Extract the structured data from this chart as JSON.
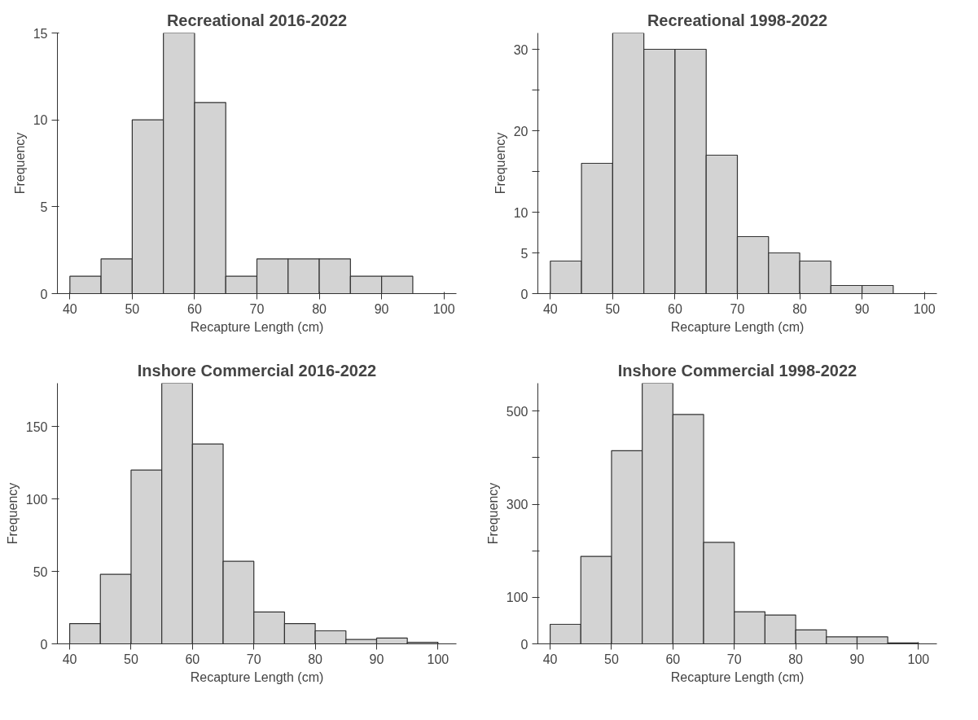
{
  "chart_data": [
    {
      "type": "histogram",
      "title": "Recreational 2016-2022",
      "xlabel": "Recapture Length (cm)",
      "ylabel": "Frequency",
      "color": "#d3d3d3",
      "grid": false,
      "bins": [
        40,
        45,
        50,
        55,
        60,
        65,
        70,
        75,
        80,
        85,
        90,
        95
      ],
      "values": [
        1,
        2,
        10,
        15,
        11,
        1,
        2,
        2,
        2,
        1,
        1
      ],
      "xlim": [
        38,
        102
      ],
      "xticks": [
        40,
        50,
        60,
        70,
        80,
        90,
        100
      ],
      "ylim": [
        0,
        15
      ],
      "yticks": [
        0,
        5,
        10,
        15
      ]
    },
    {
      "type": "histogram",
      "title": "Recreational 1998-2022",
      "xlabel": "Recapture Length (cm)",
      "ylabel": "Frequency",
      "color": "#d3d3d3",
      "grid": false,
      "bins": [
        40,
        45,
        50,
        55,
        60,
        65,
        70,
        75,
        80,
        85,
        90,
        95
      ],
      "values": [
        4,
        16,
        32,
        30,
        30,
        17,
        7,
        5,
        4,
        1,
        1
      ],
      "xlim": [
        38,
        102
      ],
      "xticks": [
        40,
        50,
        60,
        70,
        80,
        90,
        100
      ],
      "ylim": [
        0,
        32
      ],
      "yticks": [
        0,
        5,
        10,
        {
          "value": 15,
          "label": null
        },
        20,
        {
          "value": 25,
          "label": null
        },
        30
      ]
    },
    {
      "type": "histogram",
      "title": "Inshore Commercial 2016-2022",
      "xlabel": "Recapture Length (cm)",
      "ylabel": "Frequency",
      "color": "#d3d3d3",
      "grid": false,
      "bins": [
        40,
        45,
        50,
        55,
        60,
        65,
        70,
        75,
        80,
        85,
        90,
        95,
        100
      ],
      "values": [
        14,
        48,
        120,
        180,
        138,
        57,
        22,
        14,
        9,
        3,
        4,
        1
      ],
      "xlim": [
        38,
        103
      ],
      "xticks": [
        40,
        50,
        60,
        70,
        80,
        90,
        100
      ],
      "ylim": [
        0,
        180
      ],
      "yticks": [
        0,
        50,
        100,
        150
      ]
    },
    {
      "type": "histogram",
      "title": "Inshore Commercial 1998-2022",
      "xlabel": "Recapture Length (cm)",
      "ylabel": "Frequency",
      "color": "#d3d3d3",
      "grid": false,
      "bins": [
        40,
        45,
        50,
        55,
        60,
        65,
        70,
        75,
        80,
        85,
        90,
        95,
        100
      ],
      "values": [
        42,
        188,
        415,
        560,
        493,
        218,
        69,
        62,
        30,
        15,
        15,
        2
      ],
      "xlim": [
        38,
        103
      ],
      "xticks": [
        40,
        50,
        60,
        70,
        80,
        90,
        100
      ],
      "ylim": [
        0,
        560
      ],
      "yticks": [
        0,
        100,
        {
          "value": 200,
          "label": null
        },
        300,
        {
          "value": 400,
          "label": null
        },
        500
      ]
    }
  ]
}
